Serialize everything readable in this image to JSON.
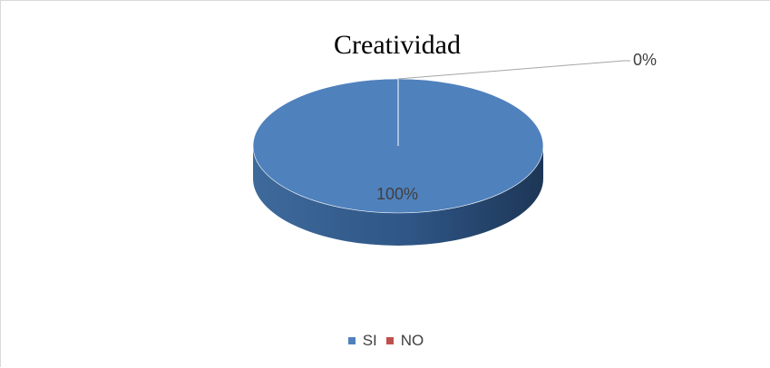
{
  "chart_data": {
    "type": "pie",
    "title": "Creatividad",
    "categories": [
      "SI",
      "NO"
    ],
    "values": [
      100,
      0
    ],
    "data_labels": [
      "100%",
      "0%"
    ],
    "colors": [
      "#4f81bd",
      "#c0504d"
    ],
    "legend_position": "bottom",
    "style": "3d"
  }
}
